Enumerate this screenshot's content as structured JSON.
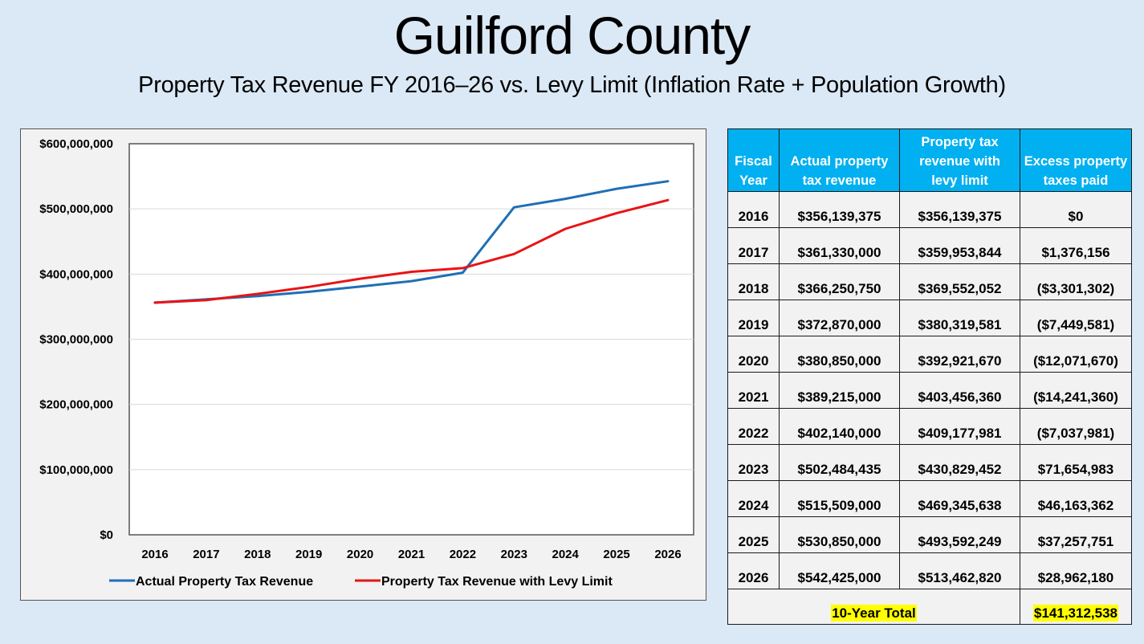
{
  "header": {
    "title": "Guilford County",
    "subtitle": "Property Tax Revenue FY 2016–26 vs. Levy Limit (Inflation Rate + Population Growth)"
  },
  "colors": {
    "background": "#dbe8f5",
    "actual_line": "#1f6fb5",
    "levy_line": "#e81416",
    "table_header": "#00b0f0",
    "highlight": "#ffff00"
  },
  "chart_data": {
    "type": "line",
    "title": "",
    "xlabel": "",
    "ylabel": "",
    "categories": [
      "2016",
      "2017",
      "2018",
      "2019",
      "2020",
      "2021",
      "2022",
      "2023",
      "2024",
      "2025",
      "2026"
    ],
    "series": [
      {
        "name": "Actual Property Tax Revenue",
        "color": "#1f6fb5",
        "values": [
          356139375,
          361330000,
          366250750,
          372870000,
          380850000,
          389215000,
          402140000,
          502484435,
          515509000,
          530850000,
          542425000
        ]
      },
      {
        "name": "Property Tax Revenue with Levy Limit",
        "color": "#e81416",
        "values": [
          356139375,
          359953844,
          369552052,
          380319581,
          392921670,
          403456360,
          409177981,
          430829452,
          469345638,
          493592249,
          513462820
        ]
      }
    ],
    "ylim": [
      0,
      600000000
    ],
    "yticks": [
      0,
      100000000,
      200000000,
      300000000,
      400000000,
      500000000,
      600000000
    ],
    "ytick_labels": [
      "$0",
      "$100,000,000",
      "$200,000,000",
      "$300,000,000",
      "$400,000,000",
      "$500,000,000",
      "$600,000,000"
    ],
    "grid": true,
    "legend": "bottom"
  },
  "table": {
    "headers": [
      [
        "Fiscal",
        "Year"
      ],
      [
        "Actual property",
        "tax revenue"
      ],
      [
        "Property tax",
        "revenue with",
        "levy limit"
      ],
      [
        "Excess property",
        "taxes paid"
      ]
    ],
    "rows": [
      [
        "2016",
        "$356,139,375",
        "$356,139,375",
        "$0"
      ],
      [
        "2017",
        "$361,330,000",
        "$359,953,844",
        "$1,376,156"
      ],
      [
        "2018",
        "$366,250,750",
        "$369,552,052",
        "($3,301,302)"
      ],
      [
        "2019",
        "$372,870,000",
        "$380,319,581",
        "($7,449,581)"
      ],
      [
        "2020",
        "$380,850,000",
        "$392,921,670",
        "($12,071,670)"
      ],
      [
        "2021",
        "$389,215,000",
        "$403,456,360",
        "($14,241,360)"
      ],
      [
        "2022",
        "$402,140,000",
        "$409,177,981",
        "($7,037,981)"
      ],
      [
        "2023",
        "$502,484,435",
        "$430,829,452",
        "$71,654,983"
      ],
      [
        "2024",
        "$515,509,000",
        "$469,345,638",
        "$46,163,362"
      ],
      [
        "2025",
        "$530,850,000",
        "$493,592,249",
        "$37,257,751"
      ],
      [
        "2026",
        "$542,425,000",
        "$513,462,820",
        "$28,962,180"
      ]
    ],
    "total_label": "10-Year Total",
    "total_value": "$141,312,538"
  }
}
